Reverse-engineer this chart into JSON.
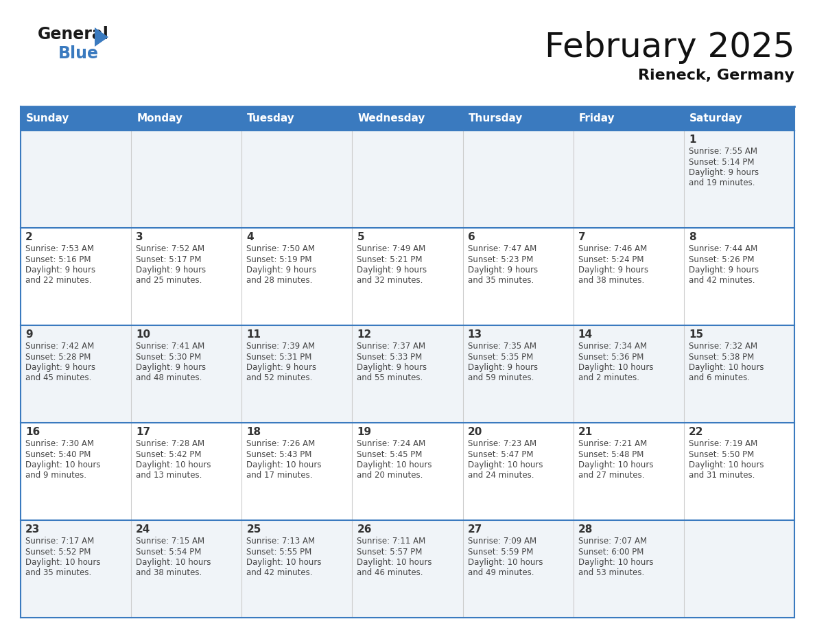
{
  "title": "February 2025",
  "subtitle": "Rieneck, Germany",
  "days_of_week": [
    "Sunday",
    "Monday",
    "Tuesday",
    "Wednesday",
    "Thursday",
    "Friday",
    "Saturday"
  ],
  "header_bg": "#3a7abf",
  "header_text": "#ffffff",
  "cell_bg_row0": "#f0f4f8",
  "cell_bg_row1": "#ffffff",
  "cell_bg_row2": "#f0f4f8",
  "cell_bg_row3": "#ffffff",
  "cell_bg_row4": "#f0f4f8",
  "row_line_color": "#3a7abf",
  "text_color": "#444444",
  "day_num_color": "#333333",
  "calendar_data": [
    {
      "day": 1,
      "row": 0,
      "col": 6,
      "sunrise": "7:55 AM",
      "sunset": "5:14 PM",
      "daylight": "9 hours and 19 minutes."
    },
    {
      "day": 2,
      "row": 1,
      "col": 0,
      "sunrise": "7:53 AM",
      "sunset": "5:16 PM",
      "daylight": "9 hours and 22 minutes."
    },
    {
      "day": 3,
      "row": 1,
      "col": 1,
      "sunrise": "7:52 AM",
      "sunset": "5:17 PM",
      "daylight": "9 hours and 25 minutes."
    },
    {
      "day": 4,
      "row": 1,
      "col": 2,
      "sunrise": "7:50 AM",
      "sunset": "5:19 PM",
      "daylight": "9 hours and 28 minutes."
    },
    {
      "day": 5,
      "row": 1,
      "col": 3,
      "sunrise": "7:49 AM",
      "sunset": "5:21 PM",
      "daylight": "9 hours and 32 minutes."
    },
    {
      "day": 6,
      "row": 1,
      "col": 4,
      "sunrise": "7:47 AM",
      "sunset": "5:23 PM",
      "daylight": "9 hours and 35 minutes."
    },
    {
      "day": 7,
      "row": 1,
      "col": 5,
      "sunrise": "7:46 AM",
      "sunset": "5:24 PM",
      "daylight": "9 hours and 38 minutes."
    },
    {
      "day": 8,
      "row": 1,
      "col": 6,
      "sunrise": "7:44 AM",
      "sunset": "5:26 PM",
      "daylight": "9 hours and 42 minutes."
    },
    {
      "day": 9,
      "row": 2,
      "col": 0,
      "sunrise": "7:42 AM",
      "sunset": "5:28 PM",
      "daylight": "9 hours and 45 minutes."
    },
    {
      "day": 10,
      "row": 2,
      "col": 1,
      "sunrise": "7:41 AM",
      "sunset": "5:30 PM",
      "daylight": "9 hours and 48 minutes."
    },
    {
      "day": 11,
      "row": 2,
      "col": 2,
      "sunrise": "7:39 AM",
      "sunset": "5:31 PM",
      "daylight": "9 hours and 52 minutes."
    },
    {
      "day": 12,
      "row": 2,
      "col": 3,
      "sunrise": "7:37 AM",
      "sunset": "5:33 PM",
      "daylight": "9 hours and 55 minutes."
    },
    {
      "day": 13,
      "row": 2,
      "col": 4,
      "sunrise": "7:35 AM",
      "sunset": "5:35 PM",
      "daylight": "9 hours and 59 minutes."
    },
    {
      "day": 14,
      "row": 2,
      "col": 5,
      "sunrise": "7:34 AM",
      "sunset": "5:36 PM",
      "daylight": "10 hours and 2 minutes."
    },
    {
      "day": 15,
      "row": 2,
      "col": 6,
      "sunrise": "7:32 AM",
      "sunset": "5:38 PM",
      "daylight": "10 hours and 6 minutes."
    },
    {
      "day": 16,
      "row": 3,
      "col": 0,
      "sunrise": "7:30 AM",
      "sunset": "5:40 PM",
      "daylight": "10 hours and 9 minutes."
    },
    {
      "day": 17,
      "row": 3,
      "col": 1,
      "sunrise": "7:28 AM",
      "sunset": "5:42 PM",
      "daylight": "10 hours and 13 minutes."
    },
    {
      "day": 18,
      "row": 3,
      "col": 2,
      "sunrise": "7:26 AM",
      "sunset": "5:43 PM",
      "daylight": "10 hours and 17 minutes."
    },
    {
      "day": 19,
      "row": 3,
      "col": 3,
      "sunrise": "7:24 AM",
      "sunset": "5:45 PM",
      "daylight": "10 hours and 20 minutes."
    },
    {
      "day": 20,
      "row": 3,
      "col": 4,
      "sunrise": "7:23 AM",
      "sunset": "5:47 PM",
      "daylight": "10 hours and 24 minutes."
    },
    {
      "day": 21,
      "row": 3,
      "col": 5,
      "sunrise": "7:21 AM",
      "sunset": "5:48 PM",
      "daylight": "10 hours and 27 minutes."
    },
    {
      "day": 22,
      "row": 3,
      "col": 6,
      "sunrise": "7:19 AM",
      "sunset": "5:50 PM",
      "daylight": "10 hours and 31 minutes."
    },
    {
      "day": 23,
      "row": 4,
      "col": 0,
      "sunrise": "7:17 AM",
      "sunset": "5:52 PM",
      "daylight": "10 hours and 35 minutes."
    },
    {
      "day": 24,
      "row": 4,
      "col": 1,
      "sunrise": "7:15 AM",
      "sunset": "5:54 PM",
      "daylight": "10 hours and 38 minutes."
    },
    {
      "day": 25,
      "row": 4,
      "col": 2,
      "sunrise": "7:13 AM",
      "sunset": "5:55 PM",
      "daylight": "10 hours and 42 minutes."
    },
    {
      "day": 26,
      "row": 4,
      "col": 3,
      "sunrise": "7:11 AM",
      "sunset": "5:57 PM",
      "daylight": "10 hours and 46 minutes."
    },
    {
      "day": 27,
      "row": 4,
      "col": 4,
      "sunrise": "7:09 AM",
      "sunset": "5:59 PM",
      "daylight": "10 hours and 49 minutes."
    },
    {
      "day": 28,
      "row": 4,
      "col": 5,
      "sunrise": "7:07 AM",
      "sunset": "6:00 PM",
      "daylight": "10 hours and 53 minutes."
    }
  ],
  "num_rows": 5,
  "title_fontsize": 36,
  "subtitle_fontsize": 16,
  "header_fontsize": 11,
  "daynum_fontsize": 11,
  "cell_text_fontsize": 8.5
}
